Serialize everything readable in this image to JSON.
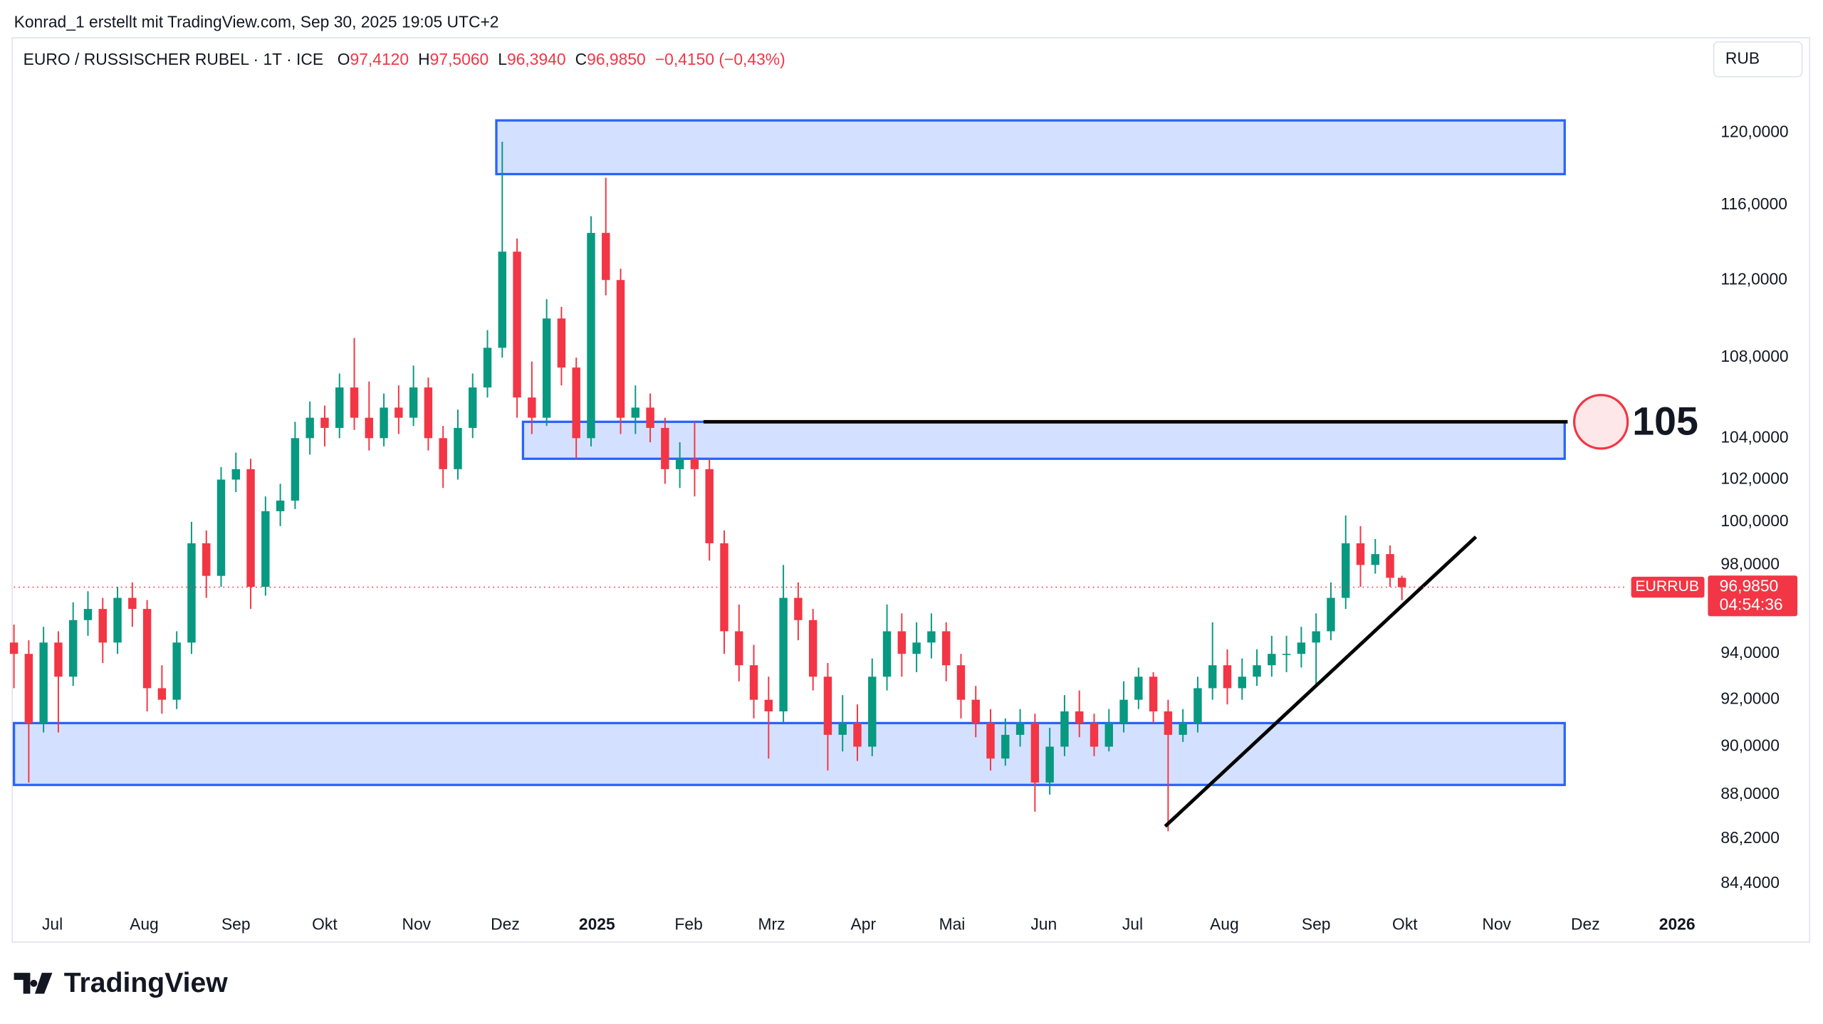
{
  "header": {
    "credit": "Konrad_1 erstellt mit TradingView.com, Sep 30, 2025 19:05 UTC+2",
    "brand": "TradingView"
  },
  "chart_data": {
    "type": "candlestick",
    "title": "EURO / RUSSISCHER RUBEL · 1T · ICE",
    "ohlc_legend": [
      {
        "key": "O",
        "value": "97,4120"
      },
      {
        "key": "H",
        "value": "97,5060"
      },
      {
        "key": "L",
        "value": "96,3940"
      },
      {
        "key": "C",
        "value": "96,9850"
      }
    ],
    "change": "−0,4150 (−0,43%)",
    "currency": "RUB",
    "symbol": "EURRUB",
    "last_price": {
      "value": 96.985,
      "label": "96,9850"
    },
    "countdown": "04:54:36",
    "log_scale": true,
    "grid": false,
    "up_color": "#089981",
    "down_color": "#f23645",
    "xlim": [
      -13,
      559
    ],
    "ylim": [
      83.5,
      125.5
    ],
    "xticks": [
      {
        "value": 0,
        "label": "Jul"
      },
      {
        "value": 31,
        "label": "Aug"
      },
      {
        "value": 62,
        "label": "Sep"
      },
      {
        "value": 92,
        "label": "Okt"
      },
      {
        "value": 123,
        "label": "Nov"
      },
      {
        "value": 153,
        "label": "Dez"
      },
      {
        "value": 184,
        "label": "2025"
      },
      {
        "value": 215,
        "label": "Feb"
      },
      {
        "value": 243,
        "label": "Mrz"
      },
      {
        "value": 274,
        "label": "Apr"
      },
      {
        "value": 304,
        "label": "Mai"
      },
      {
        "value": 335,
        "label": "Jun"
      },
      {
        "value": 365,
        "label": "Jul"
      },
      {
        "value": 396,
        "label": "Aug"
      },
      {
        "value": 427,
        "label": "Sep"
      },
      {
        "value": 457,
        "label": "Okt"
      },
      {
        "value": 488,
        "label": "Nov"
      },
      {
        "value": 518,
        "label": "Dez"
      },
      {
        "value": 549,
        "label": "2026"
      }
    ],
    "yticks": [
      {
        "value": 120,
        "label": "120,0000"
      },
      {
        "value": 116,
        "label": "116,0000"
      },
      {
        "value": 112,
        "label": "112,0000"
      },
      {
        "value": 108,
        "label": "108,0000"
      },
      {
        "value": 104,
        "label": "104,0000"
      },
      {
        "value": 102,
        "label": "102,0000"
      },
      {
        "value": 100,
        "label": "100,0000"
      },
      {
        "value": 98,
        "label": "98,0000"
      },
      {
        "value": 94,
        "label": "94,0000"
      },
      {
        "value": 92,
        "label": "92,0000"
      },
      {
        "value": 90,
        "label": "90,0000"
      },
      {
        "value": 88,
        "label": "88,0000"
      },
      {
        "value": 86.2,
        "label": "86,2000"
      },
      {
        "value": 84.4,
        "label": "84,4000"
      }
    ],
    "candles": {
      "x": [
        -13,
        -8,
        -3,
        2,
        7,
        12,
        17,
        22,
        27,
        32,
        37,
        42,
        47,
        52,
        57,
        62,
        67,
        72,
        77,
        82,
        87,
        92,
        97,
        102,
        107,
        112,
        117,
        122,
        127,
        132,
        137,
        142,
        147,
        152,
        157,
        162,
        167,
        172,
        177,
        182,
        187,
        192,
        197,
        202,
        207,
        212,
        217,
        222,
        227,
        232,
        237,
        242,
        247,
        252,
        257,
        262,
        267,
        272,
        277,
        282,
        287,
        292,
        297,
        302,
        307,
        312,
        317,
        322,
        327,
        332,
        337,
        342,
        347,
        352,
        357,
        362,
        367,
        372,
        377,
        382,
        387,
        392,
        397,
        402,
        407,
        412,
        417,
        422,
        427,
        432,
        437,
        442,
        447,
        452,
        456
      ],
      "open": [
        94.5,
        94.0,
        91.0,
        94.5,
        93.0,
        95.5,
        96.0,
        94.5,
        96.5,
        96.0,
        92.5,
        92.0,
        94.5,
        99.0,
        97.5,
        102.0,
        102.5,
        97.0,
        100.5,
        101.0,
        104.0,
        105.0,
        104.5,
        106.5,
        105.0,
        104.0,
        105.5,
        105.0,
        106.5,
        104.0,
        102.5,
        104.5,
        106.5,
        108.5,
        113.5,
        106.0,
        105.0,
        110.0,
        107.5,
        104.0,
        114.5,
        112.0,
        105.0,
        105.5,
        104.5,
        102.5,
        103.0,
        102.5,
        99.0,
        95.0,
        93.5,
        92.0,
        91.5,
        96.5,
        95.5,
        93.0,
        90.5,
        91.0,
        90.0,
        93.0,
        95.0,
        94.0,
        94.5,
        95.0,
        93.5,
        92.0,
        91.0,
        89.5,
        90.5,
        91.0,
        88.5,
        90.0,
        91.5,
        91.0,
        90.0,
        91.0,
        92.0,
        93.0,
        91.5,
        90.5,
        91.0,
        92.5,
        93.5,
        92.5,
        93.0,
        93.5,
        94.0,
        94.0,
        94.5,
        95.0,
        96.5,
        99.0,
        98.0,
        98.5,
        97.412
      ],
      "high": [
        95.3,
        94.6,
        95.2,
        95.0,
        96.3,
        96.8,
        96.5,
        97.0,
        97.2,
        96.4,
        93.5,
        95.0,
        100.0,
        99.6,
        102.6,
        103.3,
        103.0,
        101.2,
        101.8,
        104.8,
        105.8,
        105.6,
        107.2,
        109.0,
        106.8,
        106.2,
        106.6,
        107.6,
        107.0,
        104.6,
        105.4,
        107.2,
        109.4,
        119.5,
        114.2,
        107.8,
        111.0,
        110.6,
        108.0,
        115.4,
        117.5,
        112.6,
        106.6,
        106.2,
        105.0,
        103.8,
        104.8,
        103.0,
        99.6,
        96.2,
        94.4,
        93.0,
        98.0,
        97.2,
        96.0,
        93.6,
        92.2,
        91.8,
        93.8,
        96.2,
        95.8,
        95.4,
        95.8,
        95.4,
        94.0,
        92.6,
        91.6,
        91.2,
        91.6,
        91.4,
        90.8,
        92.2,
        92.4,
        91.4,
        91.6,
        92.8,
        93.4,
        93.2,
        92.0,
        91.6,
        93.0,
        95.4,
        94.2,
        93.8,
        94.2,
        94.8,
        94.8,
        95.2,
        95.8,
        97.2,
        100.3,
        99.8,
        99.2,
        98.9,
        97.506
      ],
      "low": [
        92.5,
        88.5,
        90.6,
        90.6,
        92.6,
        94.8,
        93.6,
        94.0,
        95.2,
        91.5,
        91.4,
        91.6,
        94.0,
        96.5,
        97.0,
        101.4,
        96.0,
        96.6,
        99.8,
        100.6,
        103.2,
        103.6,
        104.0,
        104.4,
        103.4,
        103.6,
        104.2,
        104.6,
        103.4,
        101.6,
        102.0,
        104.0,
        106.0,
        108.0,
        105.0,
        104.2,
        104.6,
        106.6,
        103.0,
        103.6,
        111.2,
        104.2,
        104.2,
        103.8,
        101.8,
        101.6,
        101.2,
        98.2,
        94.0,
        92.8,
        91.2,
        89.5,
        91.0,
        94.6,
        92.4,
        89.0,
        89.8,
        89.4,
        89.6,
        92.4,
        93.0,
        93.2,
        93.8,
        92.8,
        91.2,
        90.4,
        89.0,
        89.2,
        90.0,
        87.3,
        88.0,
        89.6,
        90.4,
        89.6,
        89.8,
        90.6,
        91.6,
        91.0,
        86.5,
        90.2,
        90.6,
        92.0,
        91.8,
        92.0,
        92.6,
        93.0,
        93.2,
        93.4,
        92.6,
        94.6,
        96.0,
        97.0,
        97.6,
        97.0,
        96.394
      ],
      "close": [
        94.0,
        91.0,
        94.5,
        93.0,
        95.5,
        96.0,
        94.5,
        96.5,
        96.0,
        92.5,
        92.0,
        94.5,
        99.0,
        97.5,
        102.0,
        102.5,
        97.0,
        100.5,
        101.0,
        104.0,
        105.0,
        104.5,
        106.5,
        105.0,
        104.0,
        105.5,
        105.0,
        106.5,
        104.0,
        102.5,
        104.5,
        106.5,
        108.5,
        113.5,
        106.0,
        105.0,
        110.0,
        107.5,
        104.0,
        114.5,
        112.0,
        105.0,
        105.5,
        104.5,
        102.5,
        103.0,
        102.5,
        99.0,
        95.0,
        93.5,
        92.0,
        91.5,
        96.5,
        95.5,
        93.0,
        90.5,
        91.0,
        90.0,
        93.0,
        95.0,
        94.0,
        94.5,
        95.0,
        93.5,
        92.0,
        91.0,
        89.5,
        90.5,
        91.0,
        88.5,
        90.0,
        91.5,
        91.0,
        90.0,
        91.0,
        92.0,
        93.0,
        91.5,
        90.5,
        91.0,
        92.5,
        93.5,
        92.5,
        93.0,
        93.5,
        94.0,
        94.0,
        94.5,
        95.0,
        96.5,
        99.0,
        98.0,
        98.5,
        97.412,
        96.985
      ]
    },
    "zones": [
      {
        "x": [
          150,
          511
        ],
        "y": [
          117.7,
          120.7
        ]
      },
      {
        "x": [
          159,
          511
        ],
        "y": [
          103.0,
          104.8
        ]
      },
      {
        "x": [
          -13,
          511
        ],
        "y": [
          88.4,
          91.0
        ]
      }
    ],
    "level": {
      "x": [
        220,
        512
      ],
      "value": 104.8,
      "label": "105"
    },
    "trendline": {
      "x": [
        376,
        481
      ],
      "y": [
        86.7,
        99.3
      ]
    }
  }
}
